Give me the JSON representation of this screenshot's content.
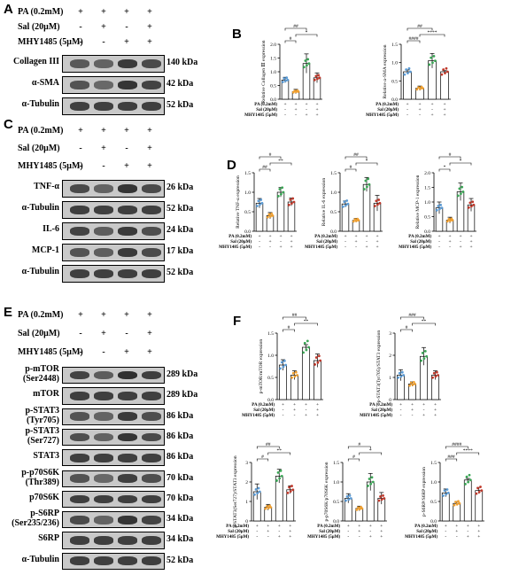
{
  "panels": {
    "A": {
      "letter": "A",
      "treatments": [
        "PA (0.2mM)",
        "Sal (20μM)",
        "MHY1485 (5μM)"
      ],
      "signs": [
        [
          "+",
          "+",
          "+",
          "+"
        ],
        [
          "-",
          "+",
          "-",
          "+"
        ],
        [
          "-",
          "-",
          "+",
          "+"
        ]
      ],
      "blots": [
        {
          "name": "Collagen III",
          "kda": "140 kDa",
          "bands": [
            0.55,
            0.45,
            0.85,
            0.7
          ]
        },
        {
          "name": "α-SMA",
          "kda": "42 kDa",
          "bands": [
            0.6,
            0.4,
            0.9,
            0.75
          ]
        },
        {
          "name": "α-Tubulin",
          "kda": "52 kDa",
          "bands": [
            0.8,
            0.8,
            0.8,
            0.8
          ]
        }
      ]
    },
    "C": {
      "letter": "C",
      "treatments": [
        "PA (0.2mM)",
        "Sal (20μM)",
        "MHY1485 (5μM)"
      ],
      "signs": [
        [
          "+",
          "+",
          "+",
          "+"
        ],
        [
          "-",
          "+",
          "-",
          "+"
        ],
        [
          "-",
          "-",
          "+",
          "+"
        ]
      ],
      "blots": [
        {
          "name": "TNF-α",
          "kda": "26 kDa",
          "bands": [
            0.7,
            0.45,
            0.9,
            0.7
          ]
        },
        {
          "name": "α-Tubulin",
          "kda": "52 kDa",
          "bands": [
            0.8,
            0.8,
            0.8,
            0.8
          ]
        },
        {
          "name": "IL-6",
          "kda": "24 kDa",
          "bands": [
            0.75,
            0.5,
            0.85,
            0.65
          ]
        },
        {
          "name": "MCP-1",
          "kda": "17 kDa",
          "bands": [
            0.6,
            0.5,
            0.85,
            0.7
          ]
        },
        {
          "name": "α-Tubulin",
          "kda": "52 kDa",
          "bands": [
            0.8,
            0.8,
            0.8,
            0.8
          ]
        }
      ]
    },
    "E": {
      "letter": "E",
      "treatments": [
        "PA (0.2mM)",
        "Sal (20μM)",
        "MHY1485 (5μM)"
      ],
      "signs": [
        [
          "+",
          "+",
          "+",
          "+"
        ],
        [
          "-",
          "+",
          "-",
          "+"
        ],
        [
          "-",
          "-",
          "+",
          "+"
        ]
      ],
      "blots": [
        {
          "name": "p-mTOR",
          "name2": "(Ser2448)",
          "kda": "289 kDa",
          "bands": [
            0.75,
            0.5,
            0.95,
            0.8
          ]
        },
        {
          "name": "mTOR",
          "kda": "289 kDa",
          "bands": [
            0.8,
            0.8,
            0.8,
            0.8
          ]
        },
        {
          "name": "p-STAT3",
          "name2": "(Tyr705)",
          "kda": "86 kDa",
          "bands": [
            0.6,
            0.45,
            0.85,
            0.65
          ]
        },
        {
          "name": "p-STAT3",
          "name2": "(Ser727)",
          "kda": "86 kDa",
          "bands": [
            0.65,
            0.45,
            0.9,
            0.7
          ]
        },
        {
          "name": "STAT3",
          "kda": "86 kDa",
          "bands": [
            0.8,
            0.8,
            0.8,
            0.8
          ]
        },
        {
          "name": "p-p70S6K",
          "name2": "(Thr389)",
          "kda": "70 kDa",
          "bands": [
            0.6,
            0.4,
            0.8,
            0.65
          ]
        },
        {
          "name": "p70S6K",
          "kda": "70 kDa",
          "bands": [
            0.8,
            0.8,
            0.8,
            0.8
          ]
        },
        {
          "name": "p-S6RP",
          "name2": "(Ser235/236)",
          "kda": "34 kDa",
          "bands": [
            0.7,
            0.45,
            0.9,
            0.75
          ]
        },
        {
          "name": "S6RP",
          "kda": "34 kDa",
          "bands": [
            0.8,
            0.8,
            0.8,
            0.8
          ]
        },
        {
          "name": "α-Tubulin",
          "kda": "52 kDa",
          "bands": [
            0.8,
            0.8,
            0.8,
            0.8
          ]
        }
      ]
    },
    "B": {
      "letter": "B"
    },
    "D": {
      "letter": "D"
    },
    "F": {
      "letter": "F"
    }
  },
  "bar_xlabels": [
    "PA (0.2mM)",
    "Sal (20μM)",
    "MHY1485 (5μM)"
  ],
  "bar_signs": [
    [
      "+",
      "+",
      "+",
      "+"
    ],
    [
      "-",
      "+",
      "-",
      "+"
    ],
    [
      "-",
      "-",
      "+",
      "+"
    ]
  ],
  "colors": {
    "ctrl": "#5b9bd5",
    "sal": "#f0a030",
    "mhy": "#3aa655",
    "both": "#c0392b"
  },
  "chart_data": [
    {
      "id": "b1",
      "type": "bar",
      "ylabel": "Relative Collagen Ⅲ expression",
      "ylim": [
        0,
        2.0
      ],
      "yticks": [
        "0.0",
        "0.5",
        "1.0",
        "1.5",
        "2.0"
      ],
      "values": [
        0.7,
        0.28,
        1.3,
        0.78
      ],
      "errors": [
        0.1,
        0.08,
        0.35,
        0.18
      ],
      "sig": [
        {
          "a": 0,
          "b": 1,
          "t": "#",
          "lvl": 0
        },
        {
          "a": 1,
          "b": 3,
          "t": "*",
          "lvl": 1
        },
        {
          "a": 0,
          "b": 2,
          "t": "##",
          "lvl": 2
        }
      ]
    },
    {
      "id": "b2",
      "type": "bar",
      "ylabel": "Relative α-SMA expression",
      "ylim": [
        0,
        1.5
      ],
      "yticks": [
        "0.0",
        "0.5",
        "1.0",
        "1.5"
      ],
      "values": [
        0.75,
        0.3,
        1.05,
        0.75
      ],
      "errors": [
        0.05,
        0.06,
        0.2,
        0.03
      ],
      "sig": [
        {
          "a": 0,
          "b": 1,
          "t": "####",
          "lvl": 0
        },
        {
          "a": 1,
          "b": 3,
          "t": "****",
          "lvl": 1
        },
        {
          "a": 0,
          "b": 2,
          "t": "##",
          "lvl": 2
        }
      ]
    },
    {
      "id": "d1",
      "type": "bar",
      "ylabel": "Relative TNF-α expression",
      "ylim": [
        0,
        1.5
      ],
      "yticks": [
        "0.0",
        "0.5",
        "1.0",
        "1.5"
      ],
      "values": [
        0.72,
        0.4,
        1.0,
        0.75
      ],
      "errors": [
        0.12,
        0.08,
        0.12,
        0.1
      ],
      "sig": [
        {
          "a": 0,
          "b": 1,
          "t": "##",
          "lvl": 0
        },
        {
          "a": 1,
          "b": 3,
          "t": "**",
          "lvl": 1
        },
        {
          "a": 0,
          "b": 2,
          "t": "#",
          "lvl": 2
        }
      ]
    },
    {
      "id": "d2",
      "type": "bar",
      "ylabel": "Relative IL-6 expression",
      "ylim": [
        0,
        1.5
      ],
      "yticks": [
        "0.0",
        "0.5",
        "1.0",
        "1.5"
      ],
      "values": [
        0.7,
        0.28,
        1.2,
        0.72
      ],
      "errors": [
        0.08,
        0.05,
        0.18,
        0.2
      ],
      "sig": [
        {
          "a": 0,
          "b": 1,
          "t": "#",
          "lvl": 0
        },
        {
          "a": 1,
          "b": 3,
          "t": "*",
          "lvl": 1
        },
        {
          "a": 0,
          "b": 2,
          "t": "##",
          "lvl": 2
        }
      ]
    },
    {
      "id": "d3",
      "type": "bar",
      "ylabel": "Relative MCP-1 expression",
      "ylim": [
        0,
        2.0
      ],
      "yticks": [
        "0.0",
        "0.5",
        "1.0",
        "1.5",
        "2.0"
      ],
      "values": [
        0.8,
        0.38,
        1.35,
        0.9
      ],
      "errors": [
        0.2,
        0.1,
        0.3,
        0.22
      ],
      "sig": [
        {
          "a": 0,
          "b": 1,
          "t": "*",
          "lvl": 0
        },
        {
          "a": 1,
          "b": 3,
          "t": "*",
          "lvl": 1
        },
        {
          "a": 0,
          "b": 2,
          "t": "#",
          "lvl": 2
        }
      ]
    },
    {
      "id": "f1",
      "type": "bar",
      "ylabel": "p-mTOR/mTOR expression",
      "ylim": [
        0,
        1.5
      ],
      "yticks": [
        "0.0",
        "0.5",
        "1.0",
        "1.5"
      ],
      "values": [
        0.78,
        0.55,
        1.18,
        0.88
      ],
      "errors": [
        0.12,
        0.1,
        0.06,
        0.15
      ],
      "sig": [
        {
          "a": 0,
          "b": 1,
          "t": "#",
          "lvl": 0
        },
        {
          "a": 1,
          "b": 3,
          "t": "**",
          "lvl": 1
        },
        {
          "a": 0,
          "b": 2,
          "t": "##",
          "lvl": 2
        }
      ]
    },
    {
      "id": "f2",
      "type": "bar",
      "ylabel": "p-STAT3(Tyr705)/STAT3 expression",
      "ylim": [
        0,
        3
      ],
      "yticks": [
        "0",
        "1",
        "2",
        "3"
      ],
      "values": [
        1.1,
        0.7,
        1.95,
        1.1
      ],
      "errors": [
        0.25,
        0.1,
        0.4,
        0.2
      ],
      "sig": [
        {
          "a": 0,
          "b": 1,
          "t": "#",
          "lvl": 0
        },
        {
          "a": 1,
          "b": 3,
          "t": "**",
          "lvl": 1
        },
        {
          "a": 0,
          "b": 2,
          "t": "###",
          "lvl": 2
        }
      ]
    },
    {
      "id": "f3",
      "type": "bar",
      "ylabel": "p-STAT3(Ser727)/STAT3 expression",
      "ylim": [
        0,
        3
      ],
      "yticks": [
        "0",
        "1",
        "2",
        "3"
      ],
      "values": [
        1.5,
        0.7,
        2.3,
        1.6
      ],
      "errors": [
        0.4,
        0.15,
        0.35,
        0.2
      ],
      "sig": [
        {
          "a": 0,
          "b": 1,
          "t": "#",
          "lvl": 0
        },
        {
          "a": 1,
          "b": 3,
          "t": "**",
          "lvl": 1
        },
        {
          "a": 0,
          "b": 2,
          "t": "##",
          "lvl": 2
        }
      ]
    },
    {
      "id": "f4",
      "type": "bar",
      "ylabel": "p-p70S6K/p70S6K expression",
      "ylim": [
        0,
        1.5
      ],
      "yticks": [
        "0.0",
        "0.5",
        "1.0",
        "1.5"
      ],
      "values": [
        0.58,
        0.32,
        1.0,
        0.58
      ],
      "errors": [
        0.12,
        0.06,
        0.22,
        0.15
      ],
      "sig": [
        {
          "a": 0,
          "b": 1,
          "t": "#",
          "lvl": 0
        },
        {
          "a": 1,
          "b": 3,
          "t": "*",
          "lvl": 1
        },
        {
          "a": 0,
          "b": 2,
          "t": "#",
          "lvl": 2
        }
      ]
    },
    {
      "id": "f5",
      "type": "bar",
      "ylabel": "p-S6RP/S6RP expression",
      "ylim": [
        0,
        1.5
      ],
      "yticks": [
        "0.0",
        "0.5",
        "1.0",
        "1.5"
      ],
      "values": [
        0.72,
        0.45,
        1.05,
        0.78
      ],
      "errors": [
        0.1,
        0.05,
        0.04,
        0.08
      ],
      "sig": [
        {
          "a": 0,
          "b": 1,
          "t": "###",
          "lvl": 0
        },
        {
          "a": 1,
          "b": 3,
          "t": "****",
          "lvl": 1
        },
        {
          "a": 0,
          "b": 2,
          "t": "####",
          "lvl": 2
        }
      ]
    }
  ]
}
